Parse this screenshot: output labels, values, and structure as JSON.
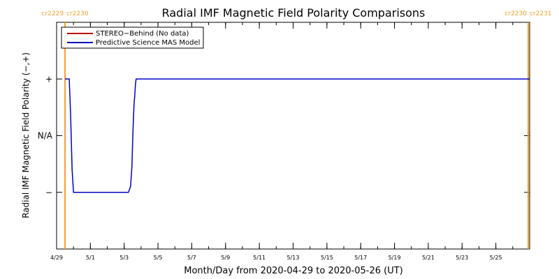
{
  "chart_data": {
    "type": "line",
    "title": "Radial IMF Magnetic Field Polarity Comparisons",
    "xlabel": "Month/Day from 2020-04-29 to 2020-05-26 (UT)",
    "ylabel": "Radial IMF Magnetic Field Polarity (−,+)",
    "xlim": [
      "2020-04-29",
      "2020-05-27"
    ],
    "ylim": [
      -2,
      2
    ],
    "x_ticks": [
      {
        "date": "2020-04-29",
        "label": "4/29"
      },
      {
        "date": "2020-05-01",
        "label": "5/1"
      },
      {
        "date": "2020-05-03",
        "label": "5/3"
      },
      {
        "date": "2020-05-05",
        "label": "5/5"
      },
      {
        "date": "2020-05-07",
        "label": "5/7"
      },
      {
        "date": "2020-05-09",
        "label": "5/9"
      },
      {
        "date": "2020-05-11",
        "label": "5/11"
      },
      {
        "date": "2020-05-13",
        "label": "5/13"
      },
      {
        "date": "2020-05-15",
        "label": "5/15"
      },
      {
        "date": "2020-05-17",
        "label": "5/17"
      },
      {
        "date": "2020-05-19",
        "label": "5/19"
      },
      {
        "date": "2020-05-21",
        "label": "5/21"
      },
      {
        "date": "2020-05-23",
        "label": "5/23"
      },
      {
        "date": "2020-05-25",
        "label": "5/25"
      }
    ],
    "y_ticks": [
      {
        "value": 1,
        "label": "+"
      },
      {
        "value": 0,
        "label": "N/A"
      },
      {
        "value": -1,
        "label": "−"
      }
    ],
    "grid": false,
    "legend_position": "top-left",
    "carrington_markers": [
      {
        "date": "2020-04-29 12:00",
        "left_label": "cr2229",
        "right_label": "cr2230",
        "color": "#f0a030"
      },
      {
        "date": "2020-05-26 22:00",
        "left_label": "cr2230",
        "right_label": "cr2231",
        "color": "#f0a030"
      }
    ],
    "series": [
      {
        "name": "STEREO−Behind (No data)",
        "color": "#c00000",
        "x": [],
        "y": []
      },
      {
        "name": "Predictive Science MAS Model",
        "color": "#0000c8",
        "x": [
          "2020-04-29 12:00",
          "2020-04-29 18:00",
          "2020-04-29 20:00",
          "2020-04-29 22:00",
          "2020-04-30 00:00",
          "2020-04-30 06:00",
          "2020-05-03 06:00",
          "2020-05-03 09:00",
          "2020-05-03 11:00",
          "2020-05-03 12:00",
          "2020-05-03 13:00",
          "2020-05-03 14:00",
          "2020-05-03 15:00",
          "2020-05-03 16:00",
          "2020-05-03 17:00",
          "2020-05-26 23:00"
        ],
        "y": [
          1,
          1,
          0.35,
          -0.6,
          -1,
          -1,
          -1,
          -0.9,
          -0.55,
          -0.1,
          0.25,
          0.55,
          0.7,
          0.9,
          1,
          1
        ]
      }
    ]
  }
}
